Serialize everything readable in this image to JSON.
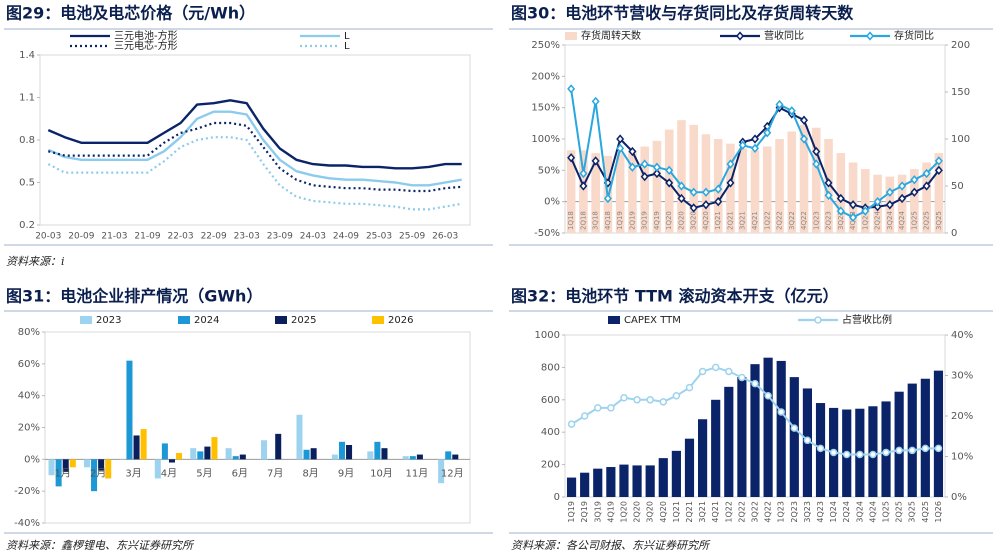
{
  "chart_data": [
    {
      "type": "line",
      "title": "图29：电池及电芯价格（元/Wh）",
      "source": "资料来源：i",
      "categories": [
        "20-03",
        null,
        "20-09",
        null,
        "21-03",
        null,
        "21-09",
        null,
        "22-03",
        null,
        "22-09",
        null,
        "23-03",
        null,
        "23-09",
        null,
        "24-03",
        null,
        "24-09",
        null,
        "25-03",
        null,
        "25-09",
        null,
        "26-03",
        null
      ],
      "ylim": [
        0.2,
        1.4
      ],
      "yticks": [
        0.2,
        0.5,
        0.8,
        1.1,
        1.4
      ],
      "series": [
        {
          "name": "三元电池-方形",
          "type": "line",
          "color": "#0b2469",
          "style": "solid",
          "values": [
            0.87,
            0.82,
            0.78,
            0.78,
            0.78,
            0.78,
            0.78,
            0.85,
            0.92,
            1.05,
            1.06,
            1.08,
            1.06,
            0.88,
            0.74,
            0.66,
            0.63,
            0.62,
            0.62,
            0.61,
            0.61,
            0.6,
            0.6,
            0.61,
            0.63,
            0.63
          ]
        },
        {
          "name": "L",
          "type": "line",
          "color": "#8ccbec",
          "style": "solid",
          "values": [
            0.73,
            0.68,
            0.66,
            0.66,
            0.66,
            0.66,
            0.66,
            0.72,
            0.82,
            0.95,
            1.0,
            1.0,
            0.98,
            0.8,
            0.66,
            0.58,
            0.55,
            0.53,
            0.52,
            0.52,
            0.51,
            0.5,
            0.48,
            0.48,
            0.5,
            0.52
          ]
        },
        {
          "name": "三元电芯-方形",
          "type": "line",
          "color": "#0b2469",
          "style": "dotted",
          "values": [
            0.72,
            0.69,
            0.69,
            0.69,
            0.69,
            0.69,
            0.69,
            0.78,
            0.85,
            0.88,
            0.92,
            0.92,
            0.9,
            0.75,
            0.6,
            0.52,
            0.48,
            0.47,
            0.46,
            0.46,
            0.45,
            0.45,
            0.44,
            0.44,
            0.46,
            0.47
          ]
        },
        {
          "name": "L",
          "type": "line",
          "color": "#8ccbec",
          "style": "dotted",
          "values": [
            0.63,
            0.57,
            0.57,
            0.57,
            0.57,
            0.57,
            0.57,
            0.65,
            0.75,
            0.8,
            0.82,
            0.82,
            0.8,
            0.63,
            0.48,
            0.4,
            0.37,
            0.36,
            0.35,
            0.35,
            0.34,
            0.33,
            0.31,
            0.31,
            0.33,
            0.35
          ]
        }
      ]
    },
    {
      "type": "combo",
      "title": "图30：电池环节营收与存货同比及存货周转天数",
      "categories": [
        "1Q18",
        "2Q18",
        "3Q18",
        "4Q18",
        "1Q19",
        "2Q19",
        "3Q19",
        "4Q19",
        "1Q20",
        "2Q20",
        "3Q20",
        "4Q20",
        "1Q21",
        "2Q21",
        "3Q21",
        "4Q21",
        "1Q22",
        "2Q22",
        "3Q22",
        "4Q22",
        "1Q23",
        "2Q23",
        "3Q23",
        "4Q23",
        "1Q24",
        "2Q24",
        "3Q24",
        "4Q24",
        "1Q25",
        "2Q25",
        "3Q25"
      ],
      "ylim": [
        -50,
        250
      ],
      "yticks": [
        {
          "value": -50,
          "label": "-50%"
        },
        {
          "value": 0,
          "label": "0%"
        },
        {
          "value": 50,
          "label": "50%"
        },
        {
          "value": 100,
          "label": "100%"
        },
        {
          "value": 150,
          "label": "150%"
        },
        {
          "value": 200,
          "label": "200%"
        },
        {
          "value": 250,
          "label": "250%"
        }
      ],
      "y2lim": [
        0,
        200
      ],
      "y2ticks": [
        0,
        50,
        100,
        150,
        200
      ],
      "series": [
        {
          "name": "存货周转天数",
          "type": "bar",
          "axis": "y2",
          "color": "#f9d9c9",
          "values": [
            88,
            88,
            85,
            82,
            85,
            88,
            92,
            98,
            110,
            120,
            115,
            105,
            100,
            95,
            90,
            88,
            92,
            100,
            108,
            115,
            112,
            100,
            85,
            75,
            68,
            62,
            60,
            62,
            68,
            75,
            85
          ]
        },
        {
          "name": "营收同比",
          "type": "line",
          "color": "#0b2469",
          "marker": "diamond",
          "values": [
            70,
            25,
            65,
            30,
            100,
            80,
            40,
            45,
            30,
            5,
            -10,
            -5,
            0,
            30,
            95,
            100,
            120,
            150,
            140,
            130,
            80,
            30,
            5,
            -5,
            -10,
            -8,
            -5,
            5,
            15,
            25,
            50
          ]
        },
        {
          "name": "存货同比",
          "type": "line",
          "color": "#2aa7df",
          "marker": "diamond",
          "values": [
            180,
            45,
            160,
            5,
            85,
            55,
            60,
            55,
            50,
            25,
            15,
            15,
            20,
            60,
            90,
            85,
            110,
            155,
            145,
            100,
            60,
            10,
            -15,
            -25,
            -15,
            0,
            15,
            25,
            35,
            45,
            65
          ]
        }
      ]
    },
    {
      "type": "bar",
      "title": "图31：电池企业排产情况（GWh）",
      "source": "资料来源：鑫椤锂电、东兴证券研究所",
      "categories": [
        "1月",
        "2月",
        "3月",
        "4月",
        "5月",
        "6月",
        "7月",
        "8月",
        "9月",
        "10月",
        "11月",
        "12月"
      ],
      "ylim": [
        -40,
        80
      ],
      "yticks": [
        {
          "value": -40,
          "label": "-40%"
        },
        {
          "value": -20,
          "label": "-20%"
        },
        {
          "value": 0,
          "label": "0%"
        },
        {
          "value": 20,
          "label": "20%"
        },
        {
          "value": 40,
          "label": "40%"
        },
        {
          "value": 60,
          "label": "60%"
        },
        {
          "value": 80,
          "label": "80%"
        }
      ],
      "series": [
        {
          "name": "2023",
          "type": "bar",
          "color": "#9dd3ef",
          "values": [
            -10,
            -5,
            0,
            -12,
            7,
            7,
            12,
            28,
            3,
            5,
            2,
            -15
          ]
        },
        {
          "name": "2024",
          "type": "bar",
          "color": "#1b98d5",
          "values": [
            -17,
            -20,
            62,
            10,
            5,
            2,
            0,
            6,
            11,
            11,
            2,
            5
          ]
        },
        {
          "name": "2025",
          "type": "bar",
          "color": "#0a1f5c",
          "values": [
            -8,
            -7,
            15,
            -2,
            8,
            3,
            16,
            7,
            9,
            7,
            3,
            3
          ]
        },
        {
          "name": "2026",
          "type": "bar",
          "color": "#ffc000",
          "values": [
            -5,
            -12,
            19,
            4,
            14,
            null,
            null,
            null,
            null,
            null,
            null,
            null
          ]
        }
      ]
    },
    {
      "type": "combo",
      "title": "图32：电池环节 TTM 滚动资本开支（亿元）",
      "source": "资料来源：各公司财报、东兴证券研究所",
      "categories": [
        "1Q19",
        "2Q19",
        "3Q19",
        "4Q19",
        "1Q20",
        "2Q20",
        "3Q20",
        "4Q20",
        "1Q21",
        "2Q21",
        "3Q21",
        "4Q21",
        "1Q22",
        "2Q22",
        "3Q22",
        "4Q22",
        "1Q23",
        "2Q23",
        "3Q23",
        "4Q23",
        "1Q24",
        "2Q24",
        "3Q24",
        "4Q24",
        "1Q25",
        "2Q25",
        "3Q25",
        "4Q25",
        "1Q26"
      ],
      "ylim": [
        0,
        1000
      ],
      "yticks": [
        0,
        200,
        400,
        600,
        800,
        1000
      ],
      "y2lim": [
        0,
        40
      ],
      "y2ticks": [
        {
          "value": 0,
          "label": "0%"
        },
        {
          "value": 10,
          "label": "10%"
        },
        {
          "value": 20,
          "label": "20%"
        },
        {
          "value": 30,
          "label": "30%"
        },
        {
          "value": 40,
          "label": "40%"
        }
      ],
      "series": [
        {
          "name": "CAPEX TTM",
          "type": "bar",
          "color": "#0b2469",
          "values": [
            120,
            150,
            175,
            185,
            200,
            195,
            195,
            240,
            285,
            360,
            480,
            600,
            680,
            740,
            820,
            860,
            840,
            740,
            670,
            580,
            550,
            540,
            545,
            560,
            590,
            650,
            700,
            730,
            780
          ]
        },
        {
          "name": "占营收比例",
          "type": "line",
          "axis": "y2",
          "color": "#9dd3ef",
          "marker": "circle",
          "values": [
            18,
            20,
            22,
            22,
            24.5,
            24,
            24,
            23.5,
            25,
            27,
            31,
            32,
            31,
            29.5,
            28,
            25,
            21,
            17,
            14,
            12,
            11,
            10.5,
            10.5,
            10.5,
            11,
            11.5,
            11.5,
            12,
            12
          ]
        }
      ]
    }
  ]
}
